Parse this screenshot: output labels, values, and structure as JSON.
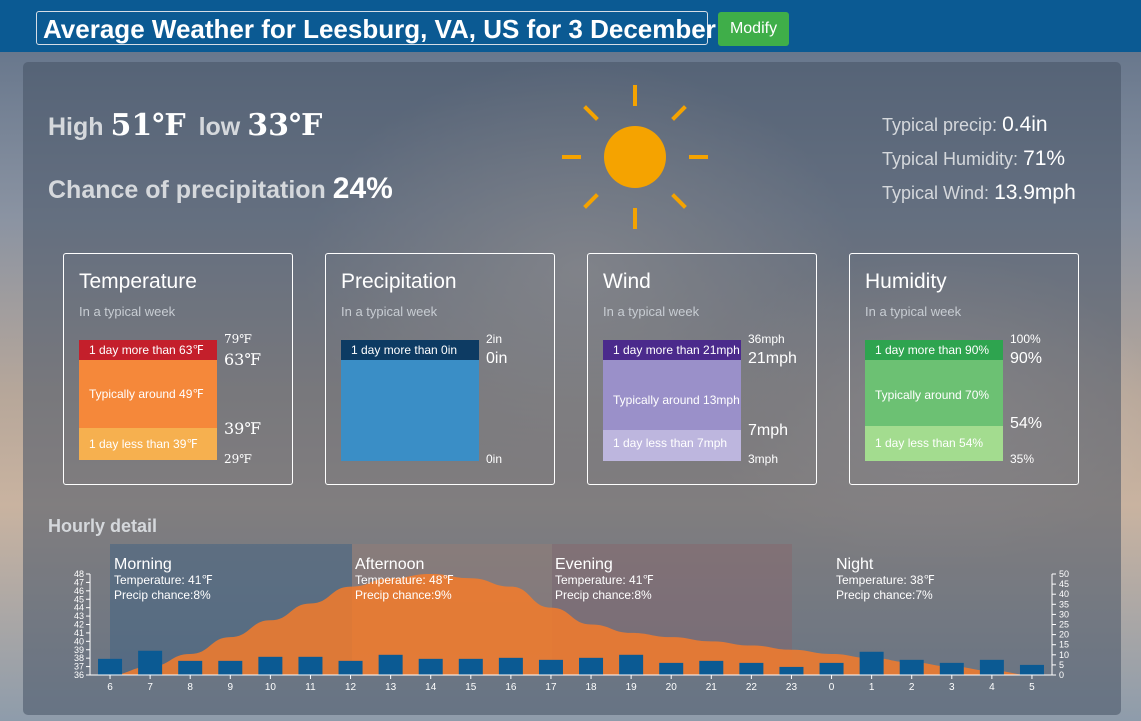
{
  "header": {
    "title": "Average Weather for Leesburg, VA, US for 3 December",
    "modify_label": "Modify"
  },
  "summary": {
    "high_label": "High",
    "high_value": "51℉",
    "low_label": "low",
    "low_value": "33℉",
    "precip_chance_label": "Chance of precipitation",
    "precip_chance_value": "24%",
    "typical_precip_label": "Typical precip:",
    "typical_precip_value": "0.4in",
    "typical_humidity_label": "Typical Humidity:",
    "typical_humidity_value": "71%",
    "typical_wind_label": "Typical Wind:",
    "typical_wind_value": "13.9mph",
    "icon": "sun-icon",
    "sun_color": "#f5a300"
  },
  "cards": {
    "temperature": {
      "title": "Temperature",
      "subtitle": "In a typical week",
      "top": "1 day more than 63℉",
      "middle": "Typically around 49℉",
      "bottom": "1 day less than 39℉",
      "max": "79℉",
      "upper": "63℉",
      "lower": "39℉",
      "min": "29℉",
      "colors": [
        "#c41f2b",
        "#f5883a",
        "#f6b04f"
      ]
    },
    "precipitation": {
      "title": "Precipitation",
      "subtitle": "In a typical week",
      "top": "1 day more than 0in",
      "max": "2in",
      "upper": "0in",
      "min": "0in",
      "colors": [
        "#0d3b63",
        "#3a8ec6"
      ]
    },
    "wind": {
      "title": "Wind",
      "subtitle": "In a typical week",
      "top": "1 day more than 21mph",
      "middle": "Typically around 13mph",
      "bottom": "1 day less than 7mph",
      "max": "36mph",
      "upper": "21mph",
      "lower": "7mph",
      "min": "3mph",
      "colors": [
        "#4b2a8c",
        "#9a90c9",
        "#bdb6de"
      ]
    },
    "humidity": {
      "title": "Humidity",
      "subtitle": "In a typical week",
      "top": "1 day more than 90%",
      "middle": "Typically around 70%",
      "bottom": "1 day less than 54%",
      "max": "100%",
      "upper": "90%",
      "lower": "54%",
      "min": "35%",
      "colors": [
        "#2ea44f",
        "#6cc173",
        "#a3dc8f"
      ]
    }
  },
  "hourly": {
    "title": "Hourly detail",
    "periods": [
      {
        "name": "Morning",
        "temp": "Temperature: 41℉",
        "precip": "Precip chance:8%"
      },
      {
        "name": "Afternoon",
        "temp": "Temperature: 48℉",
        "precip": "Precip chance:9%"
      },
      {
        "name": "Evening",
        "temp": "Temperature: 41℉",
        "precip": "Precip chance:8%"
      },
      {
        "name": "Night",
        "temp": "Temperature: 38℉",
        "precip": "Precip chance:7%"
      }
    ]
  },
  "chart_data": {
    "type": "bar",
    "categories": [
      "6",
      "7",
      "8",
      "9",
      "10",
      "11",
      "12",
      "13",
      "14",
      "15",
      "16",
      "17",
      "18",
      "19",
      "20",
      "21",
      "22",
      "23",
      "0",
      "1",
      "2",
      "3",
      "4",
      "5"
    ],
    "series": [
      {
        "name": "",
        "type": "area",
        "axis": "left",
        "values": [
          36,
          37,
          38.5,
          40.5,
          42.5,
          44.5,
          46.5,
          47.5,
          48,
          47.5,
          46.5,
          44,
          42,
          41,
          40.5,
          40,
          39.5,
          39,
          38.5,
          38,
          37.5,
          37,
          36.5,
          36
        ]
      },
      {
        "name": "",
        "type": "bar",
        "axis": "right",
        "values": [
          8,
          12,
          7,
          7,
          9,
          9,
          7,
          10,
          8,
          8,
          8.5,
          7.5,
          8.5,
          10,
          6,
          7,
          6,
          4,
          6,
          11.5,
          7.5,
          6,
          7.5,
          5
        ]
      }
    ],
    "ylim_left": [
      36,
      48
    ],
    "ylim_right": [
      0,
      50
    ],
    "left_ticks": [
      36,
      37,
      38,
      39,
      40,
      41,
      42,
      43,
      44,
      45,
      46,
      47,
      48
    ],
    "right_ticks": [
      0,
      5,
      10,
      15,
      20,
      25,
      30,
      35,
      40,
      45,
      50
    ],
    "area_color": "#f47b2a",
    "bar_color": "#0b5a93",
    "period_colors": [
      "#3a5f82",
      "#9c7a72",
      "#8e6063",
      "#7a8898"
    ]
  }
}
